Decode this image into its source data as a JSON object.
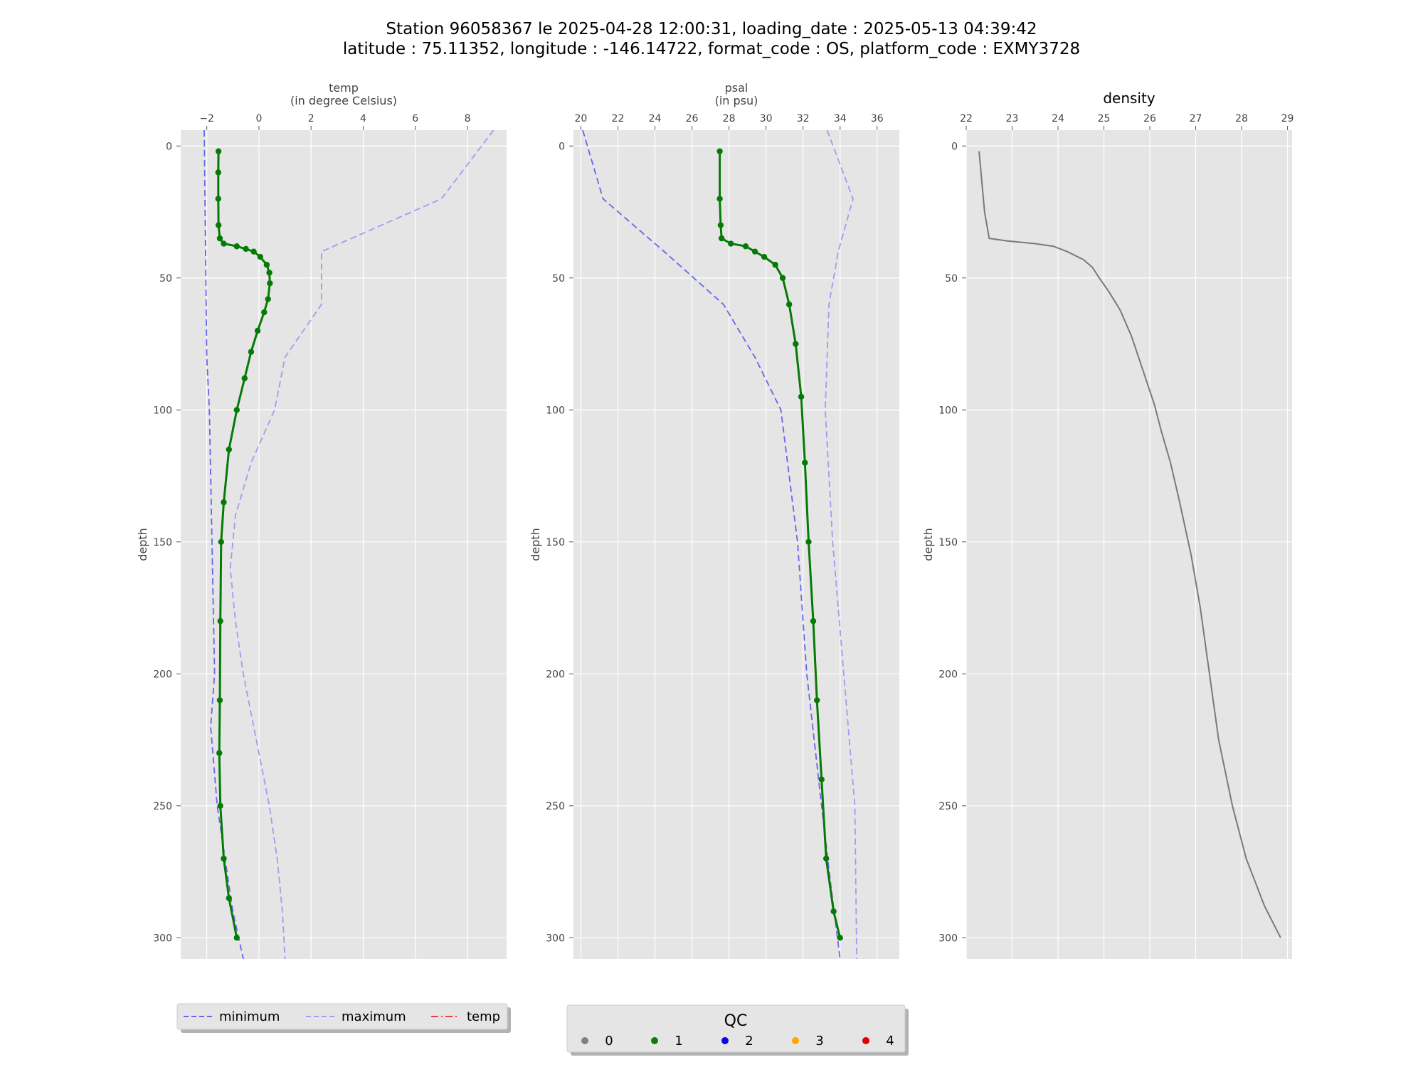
{
  "figure": {
    "title_line1": "Station 96058367 le 2025-04-28 12:00:31, loading_date : 2025-05-13 04:39:42",
    "title_line2": "latitude : 75.11352, longitude : -146.14722, format_code : OS, platform_code : EXMY3728"
  },
  "colors": {
    "minimum": "#6666ee",
    "maximum": "#9d9df2",
    "temp_legend": "#e8433a",
    "qc1_green": "#067a06",
    "density_line": "#7a7a7a",
    "panel_bg": "#e5e5e5",
    "qc0": "#808080",
    "qc1": "#0a7d0a",
    "qc2": "#0a0ae0",
    "qc3": "#ffa500",
    "qc4": "#e00000"
  },
  "chart_data": [
    {
      "type": "line",
      "title": "temp\n(in degree Celsius)",
      "ylabel": "depth",
      "xlim": [
        -3.0,
        9.5
      ],
      "ylim": [
        308,
        -6
      ],
      "xticks": [
        -2,
        0,
        2,
        4,
        6,
        8
      ],
      "xtick_labels": [
        "−2",
        "0",
        "2",
        "4",
        "6",
        "8"
      ],
      "yticks": [
        0,
        50,
        100,
        150,
        200,
        250,
        300
      ],
      "y_inverted": true,
      "x_axis_position": "top",
      "grid": true,
      "series": [
        {
          "name": "minimum",
          "style": "dashed",
          "points": [
            [
              -2.1,
              -6
            ],
            [
              -2.0,
              80
            ],
            [
              -1.9,
              100
            ],
            [
              -1.7,
              200
            ],
            [
              -1.85,
              220
            ],
            [
              -1.6,
              250
            ],
            [
              -1.0,
              290
            ],
            [
              -0.6,
              308
            ]
          ]
        },
        {
          "name": "maximum",
          "style": "dashed",
          "points": [
            [
              9.0,
              -6
            ],
            [
              7.0,
              20
            ],
            [
              2.4,
              40
            ],
            [
              2.4,
              60
            ],
            [
              1.0,
              80
            ],
            [
              0.6,
              100
            ],
            [
              -0.3,
              120
            ],
            [
              -0.9,
              140
            ],
            [
              -1.1,
              160
            ],
            [
              -0.9,
              180
            ],
            [
              -0.6,
              200
            ],
            [
              0.0,
              230
            ],
            [
              0.4,
              250
            ],
            [
              0.7,
              270
            ],
            [
              0.9,
              290
            ],
            [
              1.0,
              308
            ]
          ]
        },
        {
          "name": "temp",
          "qc": "1",
          "style": "line-markers",
          "points": [
            [
              -1.55,
              2
            ],
            [
              -1.56,
              10
            ],
            [
              -1.56,
              20
            ],
            [
              -1.55,
              30
            ],
            [
              -1.5,
              35
            ],
            [
              -1.35,
              37
            ],
            [
              -0.85,
              38
            ],
            [
              -0.5,
              39
            ],
            [
              -0.2,
              40
            ],
            [
              0.05,
              42
            ],
            [
              0.3,
              45
            ],
            [
              0.4,
              48
            ],
            [
              0.42,
              52
            ],
            [
              0.35,
              58
            ],
            [
              0.2,
              63
            ],
            [
              -0.05,
              70
            ],
            [
              -0.3,
              78
            ],
            [
              -0.55,
              88
            ],
            [
              -0.85,
              100
            ],
            [
              -1.15,
              115
            ],
            [
              -1.35,
              135
            ],
            [
              -1.45,
              150
            ],
            [
              -1.48,
              180
            ],
            [
              -1.5,
              210
            ],
            [
              -1.52,
              230
            ],
            [
              -1.48,
              250
            ],
            [
              -1.35,
              270
            ],
            [
              -1.15,
              285
            ],
            [
              -0.85,
              300
            ]
          ]
        }
      ]
    },
    {
      "type": "line",
      "title": "psal\n(in psu)",
      "ylabel": "depth",
      "xlim": [
        19.6,
        37.2
      ],
      "ylim": [
        308,
        -6
      ],
      "xticks": [
        20,
        22,
        24,
        26,
        28,
        30,
        32,
        34,
        36
      ],
      "yticks": [
        0,
        50,
        100,
        150,
        200,
        250,
        300
      ],
      "y_inverted": true,
      "x_axis_position": "top",
      "grid": true,
      "series": [
        {
          "name": "minimum",
          "style": "dashed",
          "points": [
            [
              20.1,
              -6
            ],
            [
              21.2,
              20
            ],
            [
              24.5,
              40
            ],
            [
              27.7,
              60
            ],
            [
              29.4,
              80
            ],
            [
              30.8,
              100
            ],
            [
              31.7,
              150
            ],
            [
              32.2,
              200
            ],
            [
              33.0,
              250
            ],
            [
              33.5,
              280
            ],
            [
              34.0,
              308
            ]
          ]
        },
        {
          "name": "maximum",
          "style": "dashed",
          "points": [
            [
              33.3,
              -6
            ],
            [
              34.7,
              20
            ],
            [
              33.9,
              40
            ],
            [
              33.4,
              60
            ],
            [
              33.2,
              100
            ],
            [
              33.6,
              150
            ],
            [
              34.2,
              200
            ],
            [
              34.8,
              250
            ],
            [
              34.9,
              308
            ]
          ]
        },
        {
          "name": "psal",
          "qc": "1",
          "style": "line-markers",
          "points": [
            [
              27.5,
              2
            ],
            [
              27.5,
              20
            ],
            [
              27.55,
              30
            ],
            [
              27.6,
              35
            ],
            [
              28.1,
              37
            ],
            [
              28.9,
              38
            ],
            [
              29.4,
              40
            ],
            [
              29.9,
              42
            ],
            [
              30.5,
              45
            ],
            [
              30.9,
              50
            ],
            [
              31.25,
              60
            ],
            [
              31.6,
              75
            ],
            [
              31.9,
              95
            ],
            [
              32.1,
              120
            ],
            [
              32.3,
              150
            ],
            [
              32.55,
              180
            ],
            [
              32.75,
              210
            ],
            [
              33.0,
              240
            ],
            [
              33.25,
              270
            ],
            [
              33.65,
              290
            ],
            [
              34.0,
              300
            ]
          ]
        }
      ]
    },
    {
      "type": "line",
      "title": "density",
      "ylabel": "depth",
      "xlim": [
        22.0,
        29.1
      ],
      "ylim": [
        308,
        -6
      ],
      "xticks": [
        22,
        23,
        24,
        25,
        26,
        27,
        28,
        29
      ],
      "yticks": [
        0,
        50,
        100,
        150,
        200,
        250,
        300
      ],
      "y_inverted": true,
      "x_axis_position": "top",
      "grid": true,
      "series": [
        {
          "name": "density",
          "style": "line",
          "points": [
            [
              22.28,
              2
            ],
            [
              22.4,
              25
            ],
            [
              22.5,
              35
            ],
            [
              22.9,
              36
            ],
            [
              23.5,
              37
            ],
            [
              23.9,
              38
            ],
            [
              24.2,
              40
            ],
            [
              24.55,
              43
            ],
            [
              24.75,
              46
            ],
            [
              24.9,
              50
            ],
            [
              25.1,
              55
            ],
            [
              25.35,
              62
            ],
            [
              25.6,
              72
            ],
            [
              25.85,
              85
            ],
            [
              26.1,
              98
            ],
            [
              26.25,
              108
            ],
            [
              26.45,
              120
            ],
            [
              26.65,
              135
            ],
            [
              26.9,
              155
            ],
            [
              27.1,
              175
            ],
            [
              27.3,
              200
            ],
            [
              27.5,
              225
            ],
            [
              27.8,
              250
            ],
            [
              28.1,
              270
            ],
            [
              28.5,
              288
            ],
            [
              28.85,
              300
            ]
          ]
        }
      ]
    }
  ],
  "legend_lines": {
    "items": [
      {
        "label": "minimum",
        "style": "dashed",
        "color_key": "minimum"
      },
      {
        "label": "maximum",
        "style": "dashed",
        "color_key": "maximum"
      },
      {
        "label": "temp",
        "style": "dashdot",
        "color_key": "temp_legend"
      }
    ]
  },
  "legend_qc": {
    "title": "QC",
    "items": [
      {
        "label": "0",
        "color_key": "qc0"
      },
      {
        "label": "1",
        "color_key": "qc1"
      },
      {
        "label": "2",
        "color_key": "qc2"
      },
      {
        "label": "3",
        "color_key": "qc3"
      },
      {
        "label": "4",
        "color_key": "qc4"
      }
    ]
  }
}
